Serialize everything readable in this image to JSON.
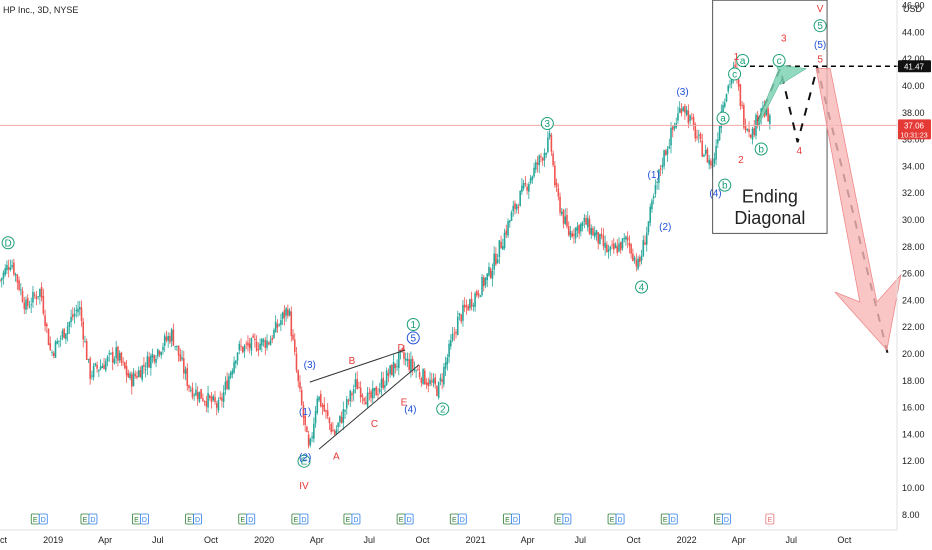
{
  "chart_data": {
    "type": "candlestick",
    "title": "HP Inc., 3D, NYSE",
    "currency": "USD",
    "colors": {
      "up": "#26a69a",
      "down": "#ef5350",
      "red_label": "#e53935",
      "blue_label": "#1e4fd6",
      "teal_label": "#1a9e77",
      "price_line": "#f4a6a6",
      "highlight_bg": "#e53935"
    },
    "y_axis": {
      "min": 7.0,
      "max": 46.5,
      "ticks": [
        "46.00",
        "44.00",
        "42.00",
        "40.00",
        "38.00",
        "36.00",
        "34.00",
        "32.00",
        "30.00",
        "28.00",
        "26.00",
        "24.00",
        "22.00",
        "20.00",
        "18.00",
        "16.00",
        "14.00",
        "12.00",
        "10.00",
        "8.00"
      ]
    },
    "x_axis": {
      "range": [
        "2018-10-01",
        "2022-12-31"
      ],
      "ticks": [
        {
          "d": "2018-10-01",
          "label": "Oct"
        },
        {
          "d": "2019-01-01",
          "label": "2019"
        },
        {
          "d": "2019-04-01",
          "label": "Apr"
        },
        {
          "d": "2019-07-01",
          "label": "Jul"
        },
        {
          "d": "2019-10-01",
          "label": "Oct"
        },
        {
          "d": "2020-01-01",
          "label": "2020"
        },
        {
          "d": "2020-04-01",
          "label": "Apr"
        },
        {
          "d": "2020-07-01",
          "label": "Jul"
        },
        {
          "d": "2020-10-01",
          "label": "Oct"
        },
        {
          "d": "2021-01-01",
          "label": "2021"
        },
        {
          "d": "2021-04-01",
          "label": "Apr"
        },
        {
          "d": "2021-07-01",
          "label": "Jul"
        },
        {
          "d": "2021-10-01",
          "label": "Oct"
        },
        {
          "d": "2022-01-01",
          "label": "2022"
        },
        {
          "d": "2022-04-01",
          "label": "Apr"
        },
        {
          "d": "2022-07-01",
          "label": "Jul"
        },
        {
          "d": "2022-10-01",
          "label": "Oct"
        }
      ]
    },
    "price_path": [
      [
        "2018-10-01",
        25.5
      ],
      [
        "2018-10-20",
        27.0
      ],
      [
        "2018-11-15",
        23.5
      ],
      [
        "2018-12-10",
        24.8
      ],
      [
        "2018-12-28",
        20.0
      ],
      [
        "2019-02-15",
        23.6
      ],
      [
        "2019-03-05",
        18.5
      ],
      [
        "2019-04-20",
        20.0
      ],
      [
        "2019-05-15",
        18.0
      ],
      [
        "2019-07-25",
        21.5
      ],
      [
        "2019-08-25",
        17.5
      ],
      [
        "2019-10-15",
        16.0
      ],
      [
        "2019-11-15",
        20.3
      ],
      [
        "2020-01-10",
        21.0
      ],
      [
        "2020-02-12",
        23.5
      ],
      [
        "2020-02-28",
        18.0
      ],
      [
        "2020-03-19",
        12.5
      ],
      [
        "2020-04-02",
        17.0
      ],
      [
        "2020-05-01",
        14.0
      ],
      [
        "2020-06-08",
        17.8
      ],
      [
        "2020-07-01",
        16.5
      ],
      [
        "2020-08-25",
        19.8
      ],
      [
        "2020-10-28",
        17.3
      ],
      [
        "2020-12-01",
        22.5
      ],
      [
        "2021-01-25",
        26.0
      ],
      [
        "2021-03-10",
        31.0
      ],
      [
        "2021-05-10",
        36.0
      ],
      [
        "2021-05-20",
        32.0
      ],
      [
        "2021-06-10",
        29.0
      ],
      [
        "2021-07-10",
        29.8
      ],
      [
        "2021-08-20",
        27.5
      ],
      [
        "2021-09-20",
        28.5
      ],
      [
        "2021-10-10",
        26.5
      ],
      [
        "2021-11-20",
        34.5
      ],
      [
        "2021-12-25",
        38.8
      ],
      [
        "2022-01-25",
        35.5
      ],
      [
        "2022-02-15",
        34.0
      ],
      [
        "2022-03-05",
        39.0
      ],
      [
        "2022-03-25",
        41.3
      ],
      [
        "2022-04-10",
        37.5
      ],
      [
        "2022-04-25",
        36.5
      ],
      [
        "2022-05-10",
        38.5
      ],
      [
        "2022-05-27",
        37.06
      ]
    ],
    "last_price": {
      "value": "37.06",
      "countdown": "10:31:23"
    },
    "target_level": {
      "value": "41.47",
      "y": 41.47,
      "from": "2022-04-05",
      "to": "2023-01-05"
    },
    "events": [
      "E",
      "D",
      "E",
      "D",
      "E",
      "D",
      "E",
      "D",
      "E",
      "D",
      "E",
      "D",
      "E",
      "D",
      "E",
      "D",
      "E",
      "D",
      "E",
      "D",
      "E",
      "D",
      "E",
      "D",
      "E",
      "D",
      "E",
      "D",
      "E"
    ],
    "annotations": [
      {
        "text": "D",
        "d": "2018-10-15",
        "y": 28.3,
        "color": "teal",
        "circle": true
      },
      {
        "text": "3",
        "d": "2021-05-05",
        "y": 37.2,
        "color": "teal",
        "circle": true
      },
      {
        "text": "4",
        "d": "2021-10-15",
        "y": 25.0,
        "color": "teal",
        "circle": true
      },
      {
        "text": "2",
        "d": "2020-11-05",
        "y": 15.9,
        "color": "teal",
        "circle": true
      },
      {
        "text": "1",
        "d": "2020-09-15",
        "y": 22.2,
        "color": "teal",
        "circle": true
      },
      {
        "text": "5",
        "d": "2020-09-15",
        "y": 21.2,
        "color": "blue",
        "circle": true
      },
      {
        "text": "E",
        "d": "2020-03-10",
        "y": 12.0,
        "color": "teal",
        "circle": true
      },
      {
        "text": "IV",
        "d": "2020-03-10",
        "y": 10.2,
        "color": "red",
        "circle": false
      },
      {
        "text": "(2)",
        "d": "2020-03-12",
        "y": 12.3,
        "color": "blue",
        "circle": false
      },
      {
        "text": "(3)",
        "d": "2020-03-20",
        "y": 19.2,
        "color": "blue",
        "circle": false
      },
      {
        "text": "(1)",
        "d": "2020-03-12",
        "y": 15.7,
        "color": "blue",
        "circle": false
      },
      {
        "text": "(4)",
        "d": "2020-09-10",
        "y": 15.9,
        "color": "blue",
        "circle": false
      },
      {
        "text": "B",
        "d": "2020-06-01",
        "y": 19.5,
        "color": "red",
        "circle": false
      },
      {
        "text": "D",
        "d": "2020-08-25",
        "y": 20.5,
        "color": "red",
        "circle": false
      },
      {
        "text": "C",
        "d": "2020-07-10",
        "y": 14.8,
        "color": "red",
        "circle": false
      },
      {
        "text": "E",
        "d": "2020-08-30",
        "y": 16.4,
        "color": "red",
        "circle": false
      },
      {
        "text": "A",
        "d": "2020-05-05",
        "y": 12.4,
        "color": "red",
        "circle": false
      },
      {
        "text": "(1)",
        "d": "2021-11-05",
        "y": 33.4,
        "color": "blue",
        "circle": false
      },
      {
        "text": "(2)",
        "d": "2021-11-25",
        "y": 29.5,
        "color": "blue",
        "circle": false
      },
      {
        "text": "(3)",
        "d": "2021-12-25",
        "y": 39.6,
        "color": "blue",
        "circle": false
      },
      {
        "text": "(4)",
        "d": "2022-02-20",
        "y": 32.0,
        "color": "blue",
        "circle": false
      },
      {
        "text": "b",
        "d": "2022-03-08",
        "y": 32.6,
        "color": "teal",
        "circle": true
      },
      {
        "text": "a",
        "d": "2022-03-05",
        "y": 37.6,
        "color": "teal",
        "circle": true
      },
      {
        "text": "c",
        "d": "2022-03-25",
        "y": 40.9,
        "color": "teal",
        "circle": true
      },
      {
        "text": "a",
        "d": "2022-04-08",
        "y": 41.9,
        "color": "teal",
        "circle": true
      },
      {
        "text": "b",
        "d": "2022-05-10",
        "y": 35.3,
        "color": "teal",
        "circle": true
      },
      {
        "text": "c",
        "d": "2022-06-10",
        "y": 41.9,
        "color": "teal",
        "circle": true
      },
      {
        "text": "1",
        "d": "2022-03-28",
        "y": 42.2,
        "color": "red",
        "circle": false
      },
      {
        "text": "2",
        "d": "2022-04-05",
        "y": 34.5,
        "color": "red",
        "circle": false
      },
      {
        "text": "3",
        "d": "2022-06-18",
        "y": 43.6,
        "color": "red",
        "circle": false
      },
      {
        "text": "4",
        "d": "2022-07-15",
        "y": 35.2,
        "color": "red",
        "circle": false
      },
      {
        "text": "5",
        "d": "2022-08-20",
        "y": 42.0,
        "color": "red",
        "circle": false
      },
      {
        "text": "V",
        "d": "2022-08-20",
        "y": 45.8,
        "color": "red",
        "circle": false
      },
      {
        "text": "5",
        "d": "2022-08-20",
        "y": 44.5,
        "color": "teal",
        "circle": true
      },
      {
        "text": "(5)",
        "d": "2022-08-20",
        "y": 43.1,
        "color": "blue",
        "circle": false
      }
    ],
    "label_box": {
      "line1": "Ending",
      "line2": "Diagonal"
    }
  }
}
